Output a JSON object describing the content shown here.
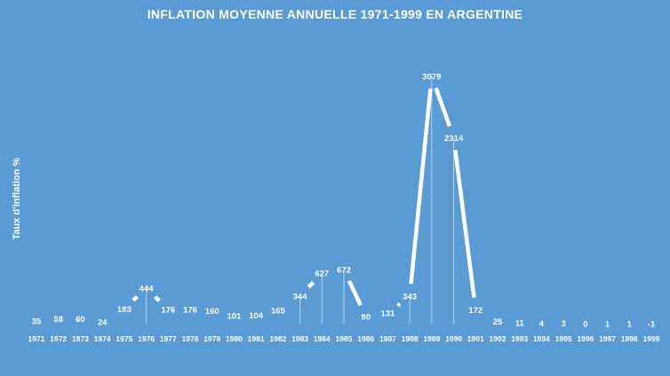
{
  "chart_data": {
    "type": "line",
    "title": "INFLATION MOYENNE ANNUELLE 1971-1999 EN ARGENTINE",
    "ylabel": "Taux d'inflation %",
    "xlabel": "",
    "categories": [
      "1971",
      "1972",
      "1973",
      "1974",
      "1975",
      "1976",
      "1977",
      "1978",
      "1979",
      "1980",
      "1981",
      "1982",
      "1983",
      "1984",
      "1985",
      "1986",
      "1987",
      "1988",
      "1989",
      "1990",
      "1991",
      "1992",
      "1993",
      "1994",
      "1995",
      "1996",
      "1997",
      "1998",
      "1999"
    ],
    "series": [
      {
        "values": [
          35,
          58,
          60,
          24,
          183,
          444,
          176,
          176,
          160,
          101,
          104,
          165,
          344,
          627,
          672,
          90,
          131,
          343,
          3079,
          2314,
          172,
          25,
          11,
          4,
          3,
          0,
          1,
          1,
          -1
        ]
      }
    ],
    "ylim": [
      0,
      3079
    ],
    "grid": false,
    "legend": "none",
    "colors": {
      "background": "#5b9bd5",
      "line": "#ffffff",
      "text": "#ffffff"
    }
  }
}
